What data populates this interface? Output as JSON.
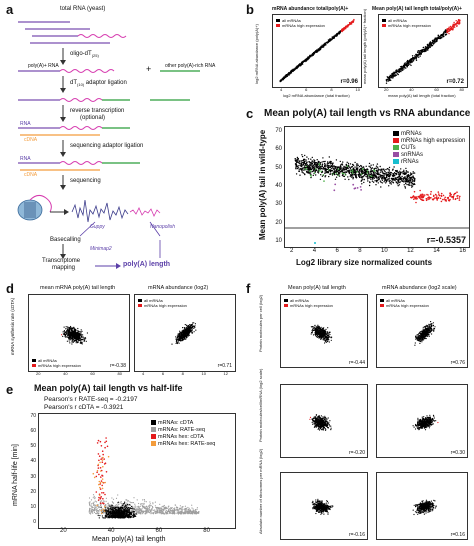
{
  "panels": {
    "a": "a",
    "b": "b",
    "c": "c",
    "d": "d",
    "e": "e",
    "f": "f"
  },
  "schematic": {
    "total_rna": "total RNA (yeast)",
    "oligo": "oligo-dT",
    "oligo_sub": "(25)",
    "polya_rna": "poly(A)+ RNA",
    "plus": "+",
    "other_rna": "other poly(A)-rich RNA",
    "adaptor_lig": "dT",
    "adaptor_lig_sub": "(10)",
    "adaptor_lig_rest": " adaptor ligation",
    "rt": "reverse transcription",
    "rt_opt": "(optional)",
    "rna1": "RNA",
    "cdna1": "cDNA",
    "seq_lig": "sequencing adaptor ligation",
    "rna2": "RNA",
    "cdna2": "cDNA",
    "sequencing": "sequencing",
    "guppy": "Guppy",
    "nanopolish": "Nanopolish",
    "basecalling": "Basecalling",
    "minimap2": "Minimap2",
    "transcriptome": "Transcriptome",
    "mapping": "mapping",
    "polya_length": "poly(A) length",
    "seq_a": "3'",
    "seq_b": "5'"
  },
  "panel_b": {
    "left": {
      "title": "mRNA abundance total/poly(A)+",
      "ylabel": "log2 mRNA abundance (poly(A)+)",
      "xlabel": "log2 mRNA abundance (total fraction)",
      "r": "r=0.96",
      "legend": [
        "all mRNAs",
        "mRNAs high expression"
      ],
      "xticks": [
        "4",
        "6",
        "8",
        "10"
      ]
    },
    "right": {
      "title": "Mean poly(A) tail length total/poly(A)+",
      "ylabel": "mean poly(A) tail length (poly(A)+ fraction)",
      "xlabel": "mean poly(A) tail length (total fraction)",
      "r": "r=0.72",
      "legend": [
        "all mRNAs",
        "mRNAs high expression"
      ],
      "xticks": [
        "20",
        "40",
        "60",
        "80"
      ],
      "yticks": [
        "80",
        "60",
        "40",
        "20"
      ]
    }
  },
  "panel_c": {
    "title": "Mean poly(A) tail length vs RNA abundance",
    "ylabel": "Mean poly(A) tail in wild-type",
    "xlabel": "Log2 library size normalized counts",
    "xticks": [
      "2",
      "4",
      "6",
      "8",
      "10",
      "12",
      "14",
      "16"
    ],
    "yticks": [
      "10",
      "20",
      "30",
      "40",
      "50",
      "60",
      "70"
    ],
    "r": "r=-0.5357",
    "legend": [
      {
        "label": "mRNAs",
        "color": "#000000"
      },
      {
        "label": "mRNAs high expression",
        "color": "#e41a1c"
      },
      {
        "label": "CUTs",
        "color": "#4daf4a"
      },
      {
        "label": "snRNAs",
        "color": "#984ea3"
      },
      {
        "label": "rRNAs",
        "color": "#17becf"
      }
    ]
  },
  "panel_d": {
    "left": {
      "title": "mean mRNA poly(A) tail length",
      "ylabel": "mRNA synthesis rate (cDTA)",
      "r": "r=-0.38",
      "legend": [
        "all mRNAs",
        "mRNAs high expression"
      ],
      "xticks": [
        "20",
        "40",
        "60",
        "80"
      ]
    },
    "right": {
      "title": "mRNA abundance (log2)",
      "r": "r=0.71",
      "legend": [
        "all mRNAs",
        "mRNAs high expression"
      ],
      "xticks": [
        "4",
        "6",
        "8",
        "10",
        "12"
      ]
    }
  },
  "panel_e": {
    "title": "Mean poly(A) tail length vs half-life",
    "pearson1": "Pearson's r RATE-seq = -0.2197",
    "pearson2": "Pearson's r cDTA = -0.3921",
    "ylabel": "mRNA half-life [min]",
    "xlabel": "Mean poly(A) tail length",
    "xticks": [
      "20",
      "40",
      "60",
      "80"
    ],
    "yticks": [
      "0",
      "10",
      "20",
      "30",
      "40",
      "50",
      "60",
      "70"
    ],
    "legend": [
      {
        "label": "mRNAs: cDTA",
        "color": "#000000"
      },
      {
        "label": "mRNAs: RATE-seq",
        "color": "#9e9e9e"
      },
      {
        "label": "mRNAs hex: cDTA",
        "color": "#e41a1c"
      },
      {
        "label": "mRNAs hex: RATE-seq",
        "color": "#f39c3c"
      }
    ]
  },
  "panel_f": {
    "col1_title": "Mean poly(A) tail length",
    "col2_title": "mRNA abundance (log2 scale)",
    "rows": [
      {
        "ylabel": "Protein molecules per cell (log2)",
        "r1": "r=-0.44",
        "r2": "r=0.76"
      },
      {
        "ylabel": "Protein molecules/cell/mRNA (log2 scale)",
        "r1": "r=-0.20",
        "r2": "r=0.30"
      },
      {
        "ylabel": "Absolute number of ribosomes per mRNA (log2)",
        "r1": "r=-0.16",
        "r2": "r=0.16"
      }
    ],
    "legend": [
      "all mRNAs",
      "mRNAs high expression"
    ]
  },
  "colors": {
    "mrna": "#000000",
    "high": "#e41a1c",
    "cut": "#4daf4a",
    "snrna": "#984ea3",
    "rrna": "#17becf",
    "grey": "#9e9e9e",
    "orange": "#f39c3c",
    "purple": "#5b3fa8",
    "magenta": "#d63caf",
    "green": "#2a9d3a"
  }
}
